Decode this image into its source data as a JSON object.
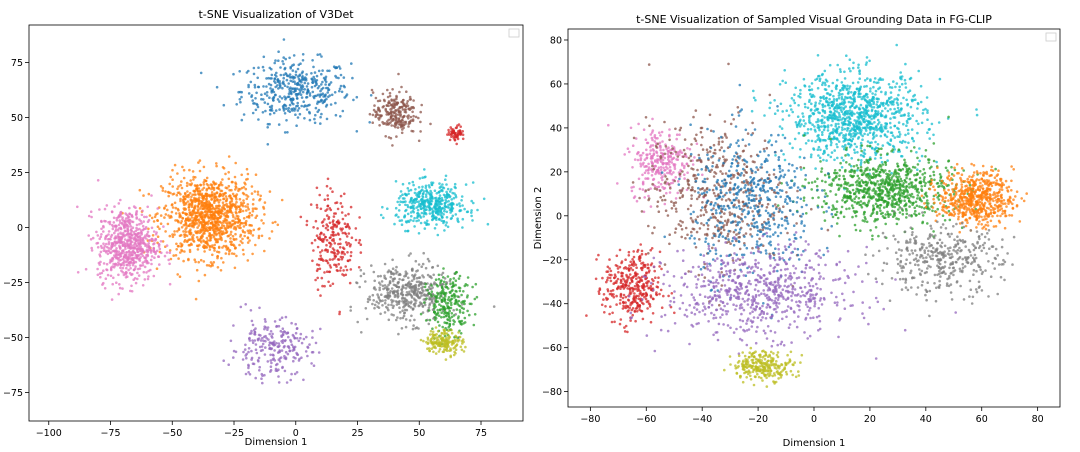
{
  "chart_data": [
    {
      "type": "scatter",
      "title": "t-SNE Visualization of V3Det",
      "xlabel": "Dimension 1",
      "ylabel": "",
      "xlim": [
        -108,
        92
      ],
      "ylim": [
        -88,
        92
      ],
      "xticks": [
        -100,
        -75,
        -50,
        -25,
        0,
        25,
        50,
        75
      ],
      "xtick_labels": [
        "−100",
        "−75",
        "−50",
        "−25",
        "0",
        "25",
        "50",
        "75"
      ],
      "yticks": [
        -75,
        -50,
        -25,
        0,
        25,
        50,
        75
      ],
      "ytick_labels": [
        "−75",
        "−50",
        "−25",
        "0",
        "25",
        "50",
        "75"
      ],
      "legend": "top-right (empty)",
      "clusters": [
        {
          "color": "#1f77b4",
          "center": [
            0,
            62
          ],
          "spread": [
            20,
            13
          ],
          "count": 420
        },
        {
          "color": "#ff7f0e",
          "center": [
            -35,
            5
          ],
          "spread": [
            17,
            17
          ],
          "count": 1100
        },
        {
          "color": "#e377c2",
          "center": [
            -68,
            -8
          ],
          "spread": [
            11,
            15
          ],
          "count": 650
        },
        {
          "color": "#8c564b",
          "center": [
            40,
            52
          ],
          "spread": [
            8,
            9
          ],
          "count": 230
        },
        {
          "color": "#d62728",
          "center": [
            65,
            43
          ],
          "spread": [
            3,
            3
          ],
          "count": 60
        },
        {
          "color": "#d62728",
          "center": [
            15,
            -5
          ],
          "spread": [
            8,
            20
          ],
          "count": 230
        },
        {
          "color": "#17becf",
          "center": [
            55,
            10
          ],
          "spread": [
            13,
            9
          ],
          "count": 420
        },
        {
          "color": "#7f7f7f",
          "center": [
            45,
            -30
          ],
          "spread": [
            15,
            12
          ],
          "count": 420
        },
        {
          "color": "#2ca02c",
          "center": [
            62,
            -35
          ],
          "spread": [
            8,
            12
          ],
          "count": 240
        },
        {
          "color": "#bcbd22",
          "center": [
            60,
            -52
          ],
          "spread": [
            7,
            5
          ],
          "count": 170
        },
        {
          "color": "#9467bd",
          "center": [
            -10,
            -55
          ],
          "spread": [
            15,
            12
          ],
          "count": 240
        }
      ]
    },
    {
      "type": "scatter",
      "title": "t-SNE Visualization of Sampled Visual Grounding Data in FG-CLIP",
      "xlabel": "Dimension 1",
      "ylabel": "Dimension 2",
      "xlim": [
        -88,
        88
      ],
      "ylim": [
        -87,
        85
      ],
      "xticks": [
        -80,
        -60,
        -40,
        -20,
        0,
        20,
        40,
        60,
        80
      ],
      "xtick_labels": [
        "−80",
        "−60",
        "−40",
        "−20",
        "0",
        "20",
        "40",
        "60",
        "80"
      ],
      "yticks": [
        -80,
        -60,
        -40,
        -20,
        0,
        20,
        40,
        60,
        80
      ],
      "ytick_labels": [
        "−80",
        "−60",
        "−40",
        "−20",
        "0",
        "20",
        "40",
        "60",
        "80"
      ],
      "legend": "top-right (empty)",
      "clusters": [
        {
          "color": "#17becf",
          "center": [
            15,
            45
          ],
          "spread": [
            22,
            18
          ],
          "count": 1000
        },
        {
          "color": "#2ca02c",
          "center": [
            25,
            12
          ],
          "spread": [
            22,
            14
          ],
          "count": 800
        },
        {
          "color": "#ff7f0e",
          "center": [
            58,
            8
          ],
          "spread": [
            12,
            11
          ],
          "count": 600
        },
        {
          "color": "#d62728",
          "center": [
            -65,
            -33
          ],
          "spread": [
            9,
            15
          ],
          "count": 360
        },
        {
          "color": "#e377c2",
          "center": [
            -55,
            25
          ],
          "spread": [
            10,
            14
          ],
          "count": 280
        },
        {
          "color": "#8c564b",
          "center": [
            -35,
            10
          ],
          "spread": [
            22,
            30
          ],
          "count": 480
        },
        {
          "color": "#1f77b4",
          "center": [
            -22,
            5
          ],
          "spread": [
            20,
            30
          ],
          "count": 480
        },
        {
          "color": "#9467bd",
          "center": [
            -20,
            -35
          ],
          "spread": [
            30,
            18
          ],
          "count": 680
        },
        {
          "color": "#bcbd22",
          "center": [
            -18,
            -68
          ],
          "spread": [
            10,
            6
          ],
          "count": 260
        },
        {
          "color": "#7f7f7f",
          "center": [
            45,
            -20
          ],
          "spread": [
            20,
            14
          ],
          "count": 380
        }
      ]
    }
  ]
}
